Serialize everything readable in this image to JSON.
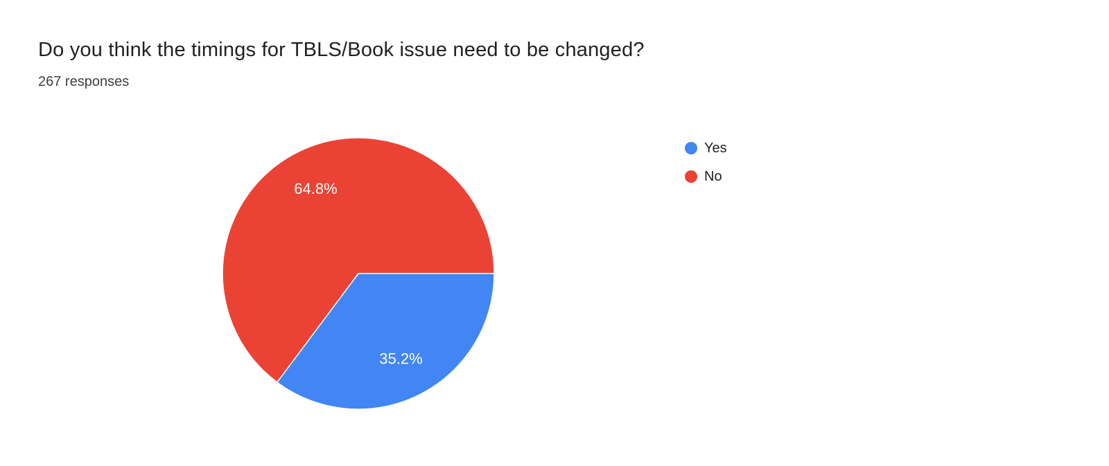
{
  "header": {
    "title": "Do you think the timings for TBLS/Book issue need to be changed?",
    "responses": "267 responses"
  },
  "chart_data": {
    "type": "pie",
    "title": "Do you think the timings for TBLS/Book issue need to be changed?",
    "responses_count": 267,
    "labels": [
      "Yes",
      "No"
    ],
    "values": [
      35.2,
      64.8
    ],
    "slice_labels": [
      "35.2%",
      "64.8%"
    ],
    "colors": [
      "#4285f4",
      "#ea4335"
    ],
    "label_text_color": "#ffffff",
    "legend_position": "right",
    "start_angle_deg": 0,
    "direction": "clockwise"
  }
}
